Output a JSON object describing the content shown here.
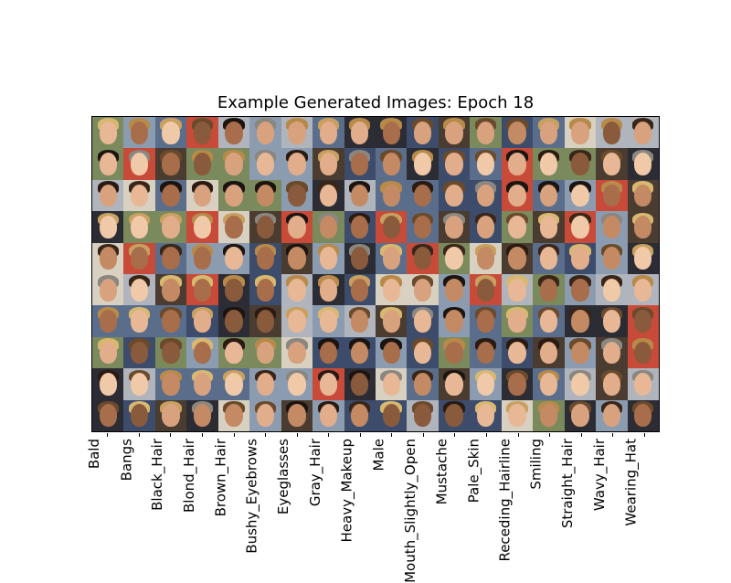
{
  "title": "Example Generated Images: Epoch 18",
  "attributes": [
    "Bald",
    "Bangs",
    "Black_Hair",
    "Blond_Hair",
    "Brown_Hair",
    "Bushy_Eyebrows",
    "Eyeglasses",
    "Gray_Hair",
    "Heavy_Makeup",
    "Male",
    "Mouth_Slightly_Open",
    "Mustache",
    "Pale_Skin",
    "Receding_Hairline",
    "Smiling",
    "Straight_Hair",
    "Wavy_Hair",
    "Wearing_Hat"
  ],
  "grid": {
    "rows": 10,
    "columns": 18
  },
  "palette": {
    "skin": [
      "#e8b896",
      "#d9a27e",
      "#c48a64",
      "#a86d4a",
      "#f0c9a8",
      "#8a5a3c",
      "#e2ad8a"
    ],
    "hair": [
      "#1c1410",
      "#3a2618",
      "#6b4a2c",
      "#b88a4a",
      "#d8b870",
      "#8a8680",
      "#2a1a12",
      "#c9a060"
    ],
    "background": [
      "#5a6e8c",
      "#2c2c34",
      "#8c9cb0",
      "#c84a38",
      "#7a8a5c",
      "#b0b4bc",
      "#3c4c6a",
      "#d8d0c0",
      "#4a3c30"
    ]
  }
}
